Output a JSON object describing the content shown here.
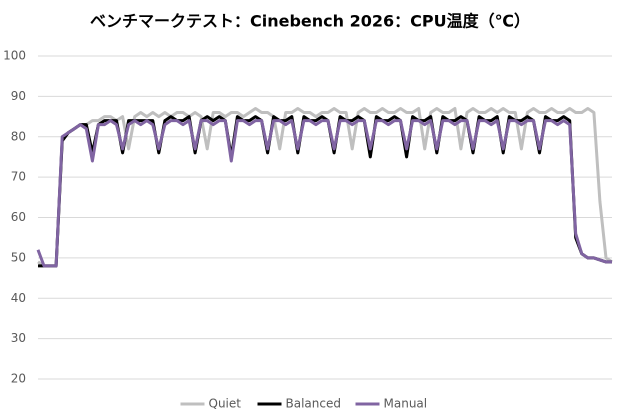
{
  "chart_data": {
    "type": "line",
    "title": "ベンチマークテスト：Cinebench 2026：CPU温度（℃）",
    "ylim": [
      20,
      100
    ],
    "yticks": [
      20,
      30,
      40,
      50,
      60,
      70,
      80,
      90,
      100
    ],
    "grid": true,
    "legend": "bottom",
    "series": [
      {
        "name": "Quiet",
        "color": "#bfbfbf",
        "values": [
          49,
          48,
          48,
          48,
          79,
          81,
          82,
          83,
          83,
          84,
          84,
          85,
          85,
          84,
          85,
          77,
          85,
          86,
          85,
          86,
          85,
          86,
          85,
          86,
          86,
          85,
          86,
          85,
          77,
          86,
          86,
          85,
          86,
          86,
          85,
          86,
          87,
          86,
          86,
          85,
          77,
          86,
          86,
          87,
          86,
          86,
          85,
          86,
          86,
          87,
          86,
          86,
          77,
          86,
          87,
          86,
          86,
          87,
          86,
          86,
          87,
          86,
          86,
          87,
          77,
          86,
          87,
          86,
          86,
          87,
          77,
          86,
          87,
          86,
          86,
          87,
          86,
          87,
          86,
          86,
          77,
          86,
          87,
          86,
          86,
          87,
          86,
          86,
          87,
          86,
          86,
          87,
          86,
          64,
          50,
          49
        ]
      },
      {
        "name": "Balanced",
        "color": "#000000",
        "values": [
          48,
          48,
          48,
          48,
          79,
          81,
          82,
          83,
          83,
          76,
          83,
          84,
          84,
          84,
          76,
          84,
          84,
          84,
          84,
          84,
          76,
          84,
          85,
          84,
          84,
          85,
          76,
          84,
          85,
          84,
          85,
          84,
          75,
          85,
          84,
          84,
          85,
          84,
          76,
          85,
          84,
          84,
          85,
          76,
          85,
          84,
          84,
          85,
          84,
          76,
          85,
          84,
          84,
          85,
          84,
          75,
          85,
          84,
          84,
          85,
          84,
          75,
          85,
          84,
          84,
          85,
          76,
          85,
          84,
          84,
          85,
          84,
          76,
          85,
          84,
          84,
          85,
          76,
          85,
          84,
          84,
          85,
          84,
          76,
          85,
          84,
          84,
          85,
          84,
          55,
          51,
          50,
          50,
          49.5,
          49,
          49
        ]
      },
      {
        "name": "Manual",
        "color": "#8064a2",
        "values": [
          52,
          48,
          48,
          48,
          80,
          81,
          82,
          83,
          82,
          74,
          83,
          83,
          84,
          83,
          77,
          83,
          84,
          83,
          84,
          83,
          77,
          83,
          84,
          84,
          83,
          84,
          77,
          84,
          84,
          83,
          84,
          84,
          74,
          84,
          84,
          83,
          84,
          84,
          77,
          84,
          84,
          83,
          84,
          77,
          84,
          84,
          83,
          84,
          84,
          77,
          84,
          84,
          83,
          84,
          84,
          77,
          84,
          84,
          83,
          84,
          84,
          77,
          84,
          84,
          83,
          84,
          77,
          84,
          84,
          83,
          84,
          84,
          77,
          84,
          84,
          83,
          84,
          77,
          84,
          84,
          83,
          84,
          84,
          77,
          84,
          84,
          83,
          84,
          83,
          56,
          51,
          50,
          50,
          49.5,
          49,
          49
        ]
      }
    ]
  }
}
